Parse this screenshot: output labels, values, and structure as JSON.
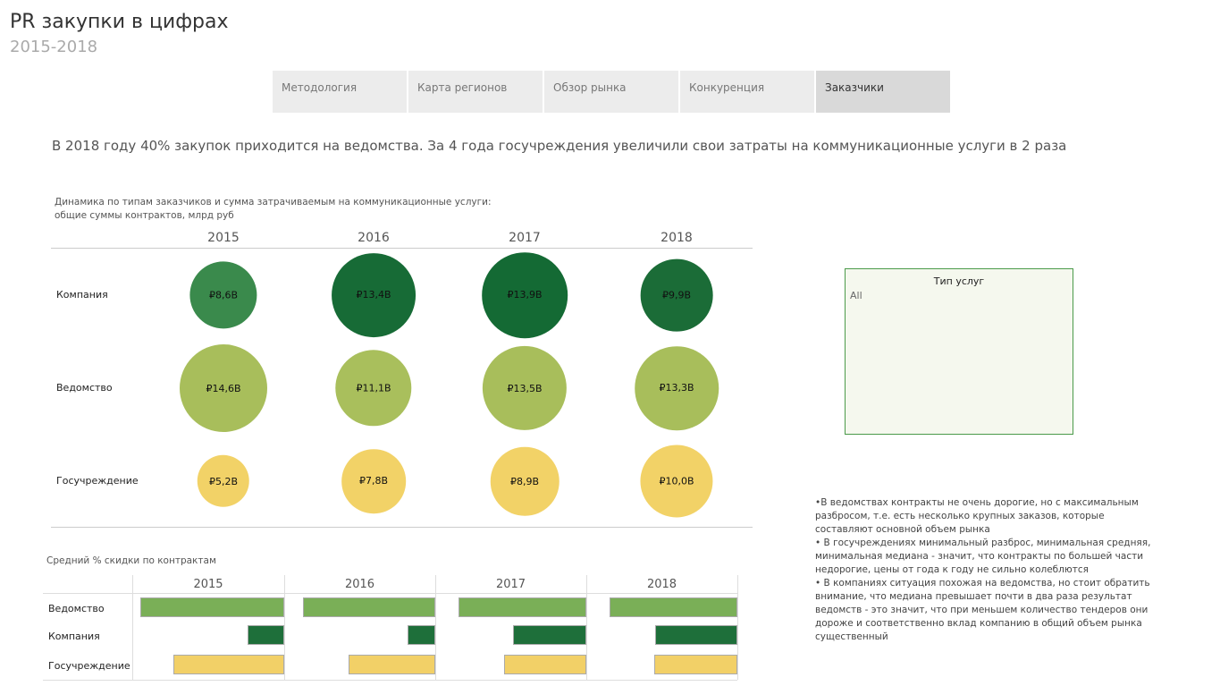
{
  "header": {
    "title": "PR закупки в цифрах",
    "subtitle": "2015-2018"
  },
  "tabs": [
    {
      "label": "Методология"
    },
    {
      "label": "Карта регионов"
    },
    {
      "label": "Обзор рынка"
    },
    {
      "label": "Конкуренция"
    },
    {
      "label": "Заказчики",
      "active": true
    }
  ],
  "headline": "В 2018 году 40% закупок приходится на ведомства. За 4 года госучреждения увеличили свои затраты на коммуникационные услуги в 2 раза",
  "filter": {
    "title": "Тип услуг",
    "value": "All"
  },
  "notes": [
    "•В ведомствах контракты не очень дорогие, но с максимальным разбросом, т.е. есть несколько крупных заказов, которые составляют основной объем рынка",
    "• В госучреждениях минимальный разброс, минимальная средняя, минимальная медиана - значит, что контракты по большей части недорогие, цены от года к году не сильно колеблются",
    "• В компаниях ситуация похожая на ведомства, но стоит обратить внимание, что медиана превышает почти в два раза результат ведомств - это значит, что при меньшем количество тендеров они дороже и соответственно вклад компанию в общий объем рынка существенный"
  ],
  "chart_data": [
    {
      "type": "bubble",
      "title": "Динамика по типам заказчиков и сумма затрачиваемым на коммуникационные услуги:",
      "subtitle": "общие суммы контрактов, млрд руб",
      "categories": [
        "2015",
        "2016",
        "2017",
        "2018"
      ],
      "series": [
        {
          "name": "Компания",
          "values": [
            8.6,
            13.4,
            13.9,
            9.9
          ],
          "labels": [
            "₽8,6B",
            "₽13,4B",
            "₽13,9B",
            "₽9,9B"
          ],
          "colors": [
            "#3a8a4c",
            "#176b36",
            "#146a34",
            "#1b6c37"
          ]
        },
        {
          "name": "Ведомство",
          "values": [
            14.6,
            11.1,
            13.5,
            13.3
          ],
          "labels": [
            "₽14,6B",
            "₽11,1B",
            "₽13,5B",
            "₽13,3B"
          ],
          "colors": [
            "#a8be5b",
            "#a9bf5c",
            "#a8be5b",
            "#a8be5b"
          ]
        },
        {
          "name": "Госучреждение",
          "values": [
            5.2,
            7.8,
            8.9,
            10.0
          ],
          "labels": [
            "₽5,2B",
            "₽7,8B",
            "₽8,9B",
            "₽10,0B"
          ],
          "colors": [
            "#f2d267",
            "#f2d267",
            "#f2d267",
            "#f2d267"
          ]
        }
      ]
    },
    {
      "type": "bar",
      "title": "Средний % скидки по контрактам",
      "categories": [
        "2015",
        "2016",
        "2017",
        "2018"
      ],
      "note": "relative bar length, axis not shown",
      "series": [
        {
          "name": "Ведомство",
          "values": [
            0.95,
            0.87,
            0.84,
            0.84
          ],
          "color": "#7aaf57"
        },
        {
          "name": "Компания",
          "values": [
            0.24,
            0.18,
            0.48,
            0.54
          ],
          "color": "#1e6f3a"
        },
        {
          "name": "Госучреждение",
          "values": [
            0.73,
            0.57,
            0.54,
            0.55
          ],
          "color": "#f2d067"
        }
      ]
    }
  ]
}
